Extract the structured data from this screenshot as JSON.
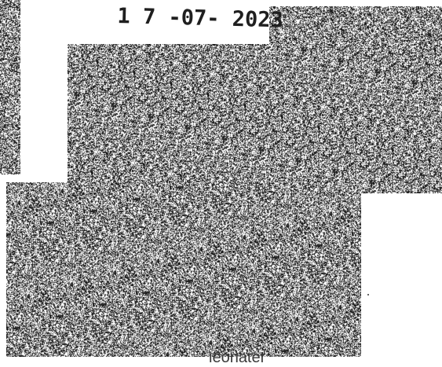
{
  "document": {
    "stamp_date": "1 7 -07- 2023",
    "footer_fragment": "leonater"
  },
  "colors": {
    "background": "#ffffff",
    "ink": "#1f1f1f",
    "noise_dark": "#222222",
    "noise_light": "#ffffff"
  }
}
